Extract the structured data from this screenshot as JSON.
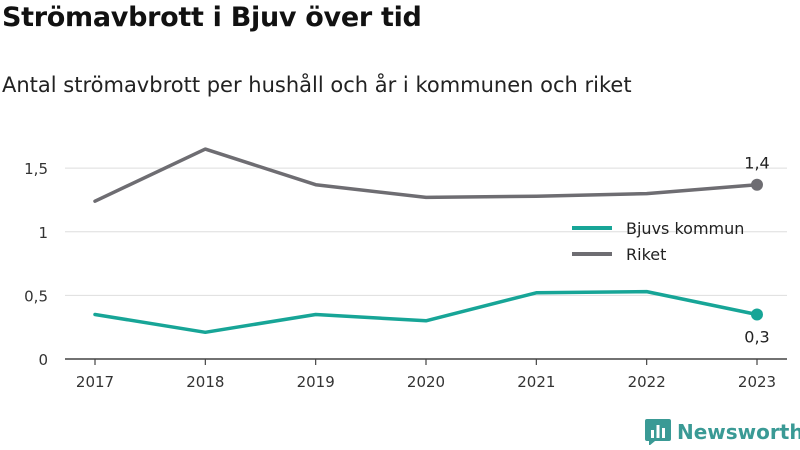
{
  "chart_data": {
    "type": "line",
    "title": "Strömavbrott i Bjuv över tid",
    "subtitle": "Antal strömavbrott per hushåll och år i kommunen och riket",
    "x": [
      "2017",
      "2018",
      "2019",
      "2020",
      "2021",
      "2022",
      "2023"
    ],
    "series": [
      {
        "name": "Bjuvs kommun",
        "color": "#17a597",
        "values": [
          0.35,
          0.21,
          0.35,
          0.3,
          0.52,
          0.53,
          0.35
        ],
        "end_label": "0,3"
      },
      {
        "name": "Riket",
        "color": "#6e6d72",
        "values": [
          1.24,
          1.65,
          1.37,
          1.27,
          1.28,
          1.3,
          1.37
        ],
        "end_label": "1,4"
      }
    ],
    "y_ticks": [
      {
        "value": 0,
        "label": "0"
      },
      {
        "value": 0.5,
        "label": "0,5"
      },
      {
        "value": 1,
        "label": "1"
      },
      {
        "value": 1.5,
        "label": "1,5"
      }
    ],
    "ylim": [
      0,
      1.8
    ],
    "grid": true,
    "legend_position": "right"
  },
  "brand": {
    "name": "Newsworthy",
    "icon": "bar-chart-logo-icon",
    "color": "#3a9a95"
  }
}
